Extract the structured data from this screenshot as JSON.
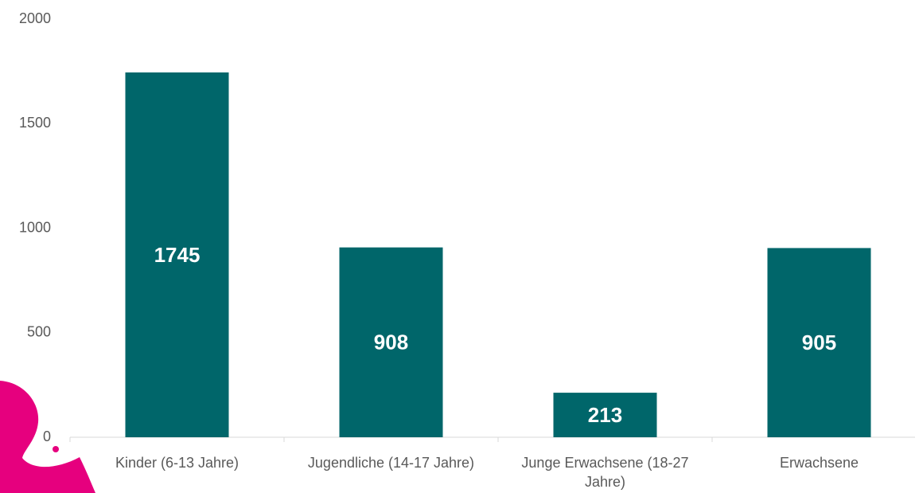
{
  "chart_data": {
    "type": "bar",
    "categories": [
      "Kinder (6-13 Jahre)",
      "Jugendliche (14-17 Jahre)",
      "Junge Erwachsene (18-27 Jahre)",
      "Erwachsene"
    ],
    "values": [
      1745,
      908,
      213,
      905
    ],
    "color": "#00666a",
    "ylim": [
      0,
      2000
    ],
    "yticks": [
      0,
      500,
      1000,
      1500,
      2000
    ],
    "grid": false
  }
}
